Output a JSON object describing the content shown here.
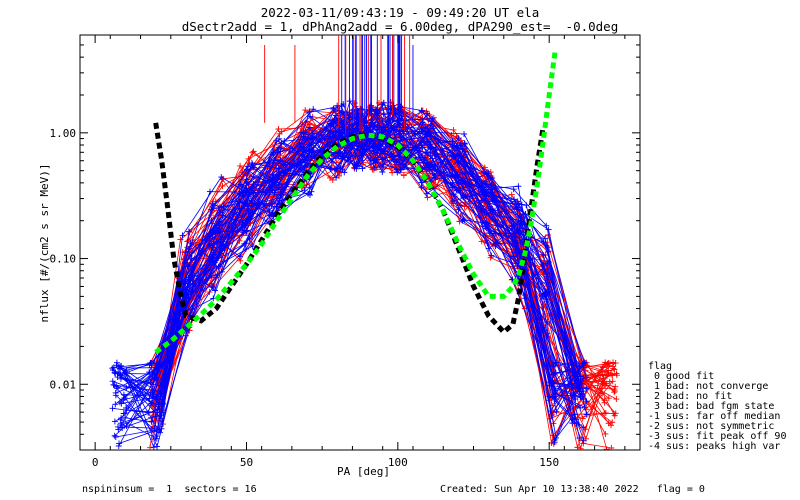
{
  "title_line1": "2022-03-11/09:43:19 - 09:49:20 UT ela",
  "title_line2": "dSectr2add = 1, dPhAng2add = 6.00deg, dPA290_est=  -0.0deg",
  "footer": {
    "left": "nspininsum =  1  sectors = 16",
    "right": "Created: Sun Apr 10 13:38:40 2022   flag = 0"
  },
  "legend": {
    "title": "flag",
    "entries": [
      " 0 good fit",
      " 1 bad: not converge",
      " 2 bad: no fit",
      " 3 bad: bad fgm state",
      "-1 sus: far off median",
      "-2 sus: not symmetric",
      "-3 sus: fit peak off 90",
      "-4 sus: peaks high var"
    ]
  },
  "chart_data": {
    "type": "line",
    "xlabel": "PA [deg]",
    "ylabel": "nflux [#/(cm2 s sr MeV)]",
    "xlim": [
      -5,
      180
    ],
    "ylim": [
      0.003,
      6.0
    ],
    "yscale": "log",
    "xticks": [
      0,
      50,
      100,
      150
    ],
    "yticks": [
      0.01,
      0.1,
      1.0
    ],
    "ytick_labels": [
      "0.01",
      "0.10",
      "1.00"
    ],
    "colors": {
      "red": "#ff0000",
      "blue": "#0000ff",
      "green": "#00ff00",
      "black": "#000000"
    },
    "series": [
      {
        "color": "#000000",
        "style": "dashed-thick",
        "x": [
          20,
          22,
          24,
          26,
          28,
          30,
          35,
          40,
          45,
          50,
          55,
          60,
          65,
          70,
          75,
          80,
          85,
          90,
          95,
          100,
          105,
          110,
          115,
          120,
          125,
          130,
          135,
          138,
          140,
          142,
          144,
          146,
          148
        ],
        "y": [
          1.2,
          0.6,
          0.25,
          0.1,
          0.055,
          0.035,
          0.032,
          0.04,
          0.06,
          0.09,
          0.14,
          0.22,
          0.33,
          0.48,
          0.66,
          0.82,
          0.93,
          0.97,
          0.91,
          0.78,
          0.6,
          0.4,
          0.24,
          0.12,
          0.06,
          0.035,
          0.026,
          0.03,
          0.05,
          0.11,
          0.25,
          0.55,
          1.1
        ]
      },
      {
        "color": "#00ff00",
        "style": "dashed-thick",
        "x": [
          20,
          25,
          30,
          35,
          40,
          45,
          50,
          55,
          60,
          65,
          70,
          75,
          80,
          85,
          90,
          95,
          100,
          105,
          110,
          115,
          120,
          125,
          130,
          135,
          138,
          140,
          142,
          144,
          146,
          148,
          150,
          152
        ],
        "y": [
          0.018,
          0.022,
          0.028,
          0.036,
          0.047,
          0.065,
          0.09,
          0.13,
          0.2,
          0.3,
          0.45,
          0.62,
          0.78,
          0.9,
          0.96,
          0.93,
          0.8,
          0.6,
          0.4,
          0.24,
          0.13,
          0.075,
          0.05,
          0.05,
          0.06,
          0.075,
          0.11,
          0.19,
          0.38,
          0.85,
          2.0,
          4.5
        ]
      }
    ]
  }
}
